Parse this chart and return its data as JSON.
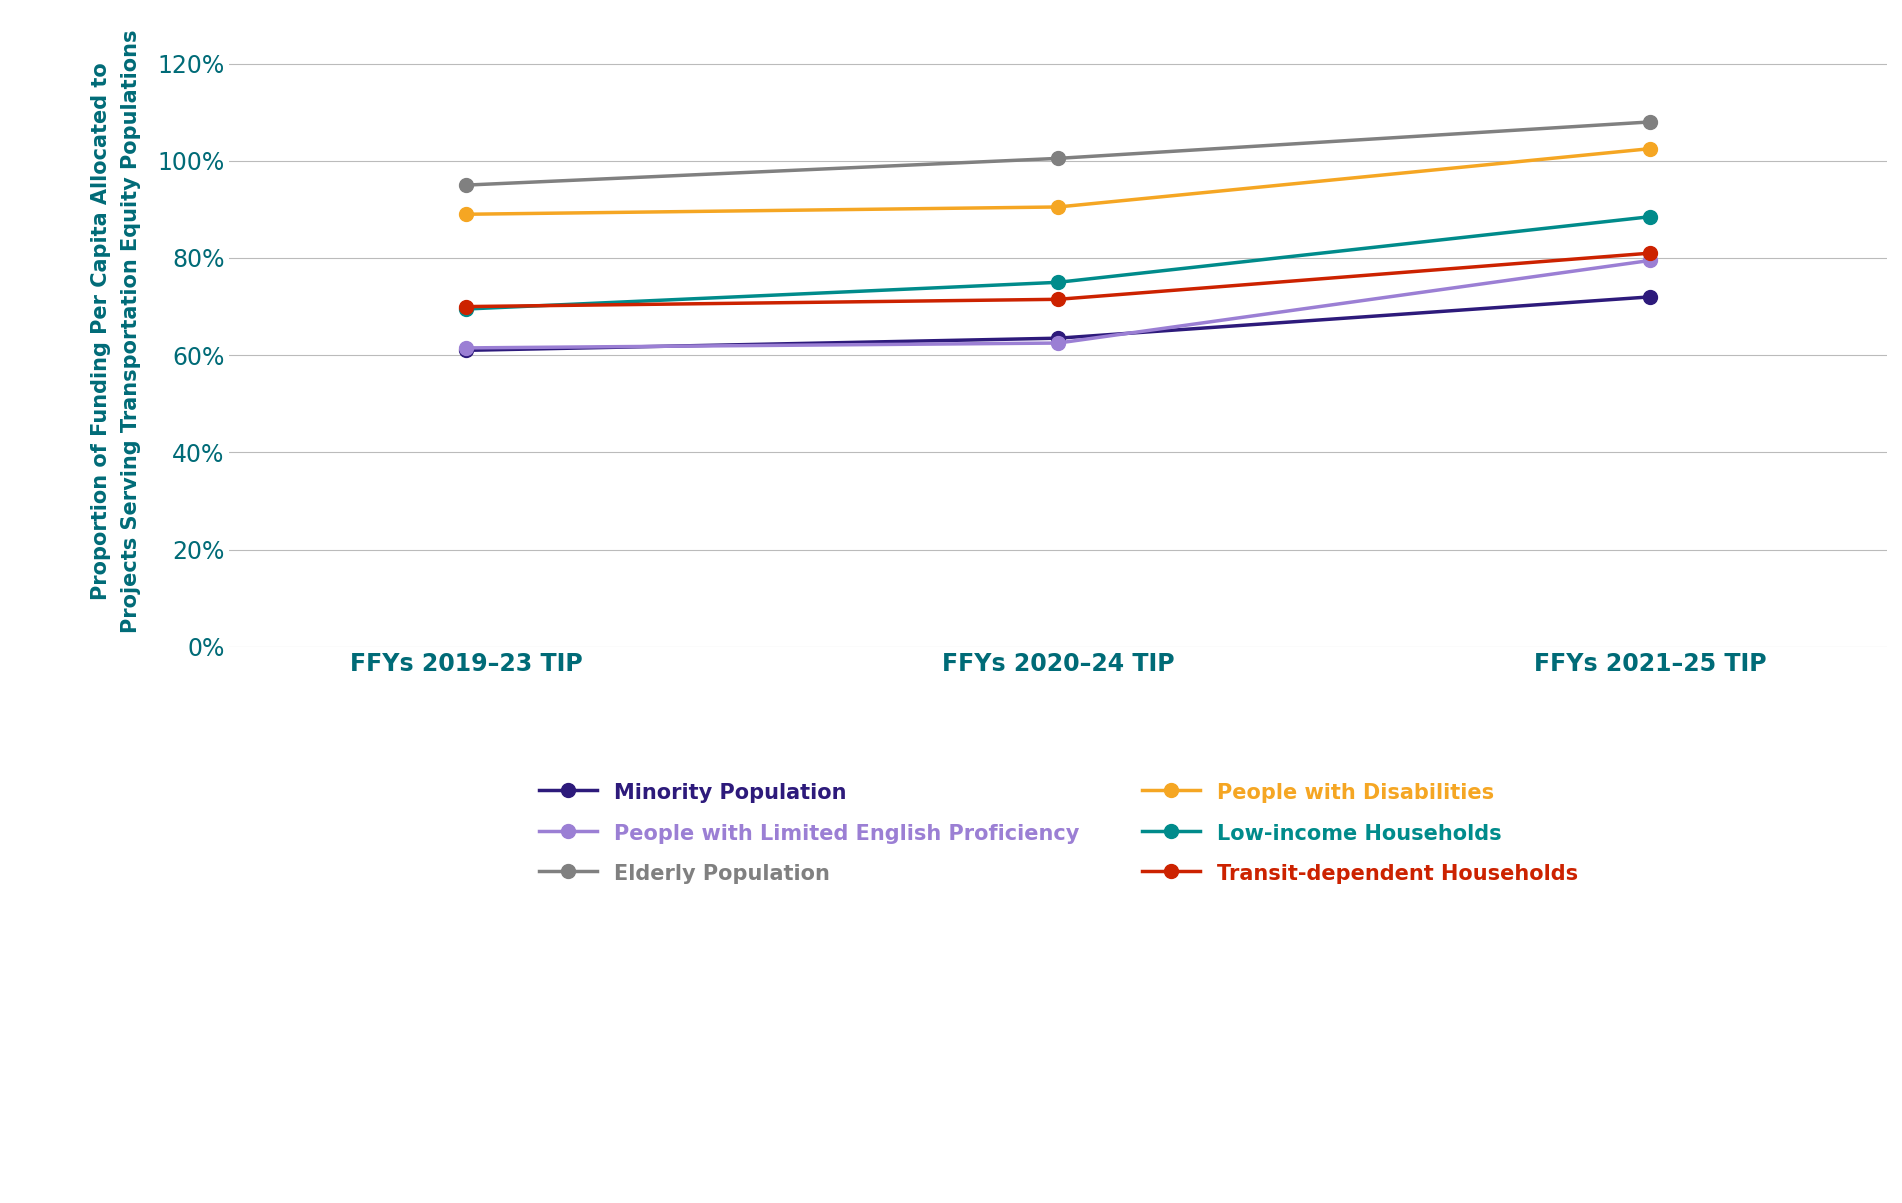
{
  "x_labels": [
    "FFYs 2019–23 TIP",
    "FFYs 2020–24 TIP",
    "FFYs 2021–25 TIP"
  ],
  "series": [
    {
      "label": "Minority Population",
      "color": "#2D1A7B",
      "values": [
        0.61,
        0.635,
        0.72
      ]
    },
    {
      "label": "Elderly Population",
      "color": "#808080",
      "values": [
        0.95,
        1.005,
        1.08
      ]
    },
    {
      "label": "Low-income Households",
      "color": "#008B8B",
      "values": [
        0.695,
        0.75,
        0.885
      ]
    },
    {
      "label": "People with Limited English Proficiency",
      "color": "#9B7FD4",
      "values": [
        0.615,
        0.625,
        0.795
      ]
    },
    {
      "label": "People with Disabilities",
      "color": "#F5A623",
      "values": [
        0.89,
        0.905,
        1.025
      ]
    },
    {
      "label": "Transit-dependent Households",
      "color": "#CC2200",
      "values": [
        0.7,
        0.715,
        0.81
      ]
    }
  ],
  "legend_order": [
    [
      "Minority Population",
      "People with Limited English Proficiency"
    ],
    [
      "Elderly Population",
      "People with Disabilities"
    ],
    [
      "Low-income Households",
      "Transit-dependent Households"
    ]
  ],
  "ylabel": "Proportion of Funding Per Capita Allocated to\nProjects Serving Transportation Equity Populations",
  "ylabel_color": "#006B77",
  "axis_label_color": "#006B77",
  "tick_color": "#006B77",
  "ylim": [
    0,
    1.3
  ],
  "yticks": [
    0,
    0.2,
    0.4,
    0.6,
    0.8,
    1.0,
    1.2
  ],
  "grid_color": "#BBBBBB",
  "background_color": "#FFFFFF",
  "legend_colors": {
    "Minority Population": "#2D1A7B",
    "Elderly Population": "#808080",
    "Low-income Households": "#008B8B",
    "People with Limited English Proficiency": "#9B7FD4",
    "People with Disabilities": "#F5A623",
    "Transit-dependent Households": "#CC2200"
  }
}
